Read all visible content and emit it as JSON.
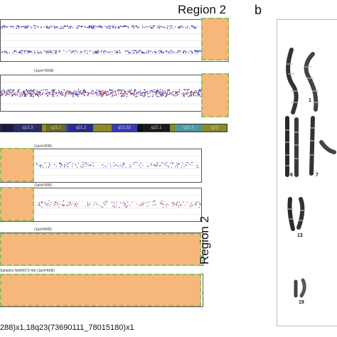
{
  "panel_a": {
    "region_label_top": "Region 2",
    "region_label_side": "Region 2",
    "panels": [
      {
        "label": ""
      },
      {
        "label": "(1pxl=76KB)"
      },
      {
        "label": "(1pxl=2KB)"
      },
      {
        "label": "(1pxl=2KB)"
      },
      {
        "label": "(1pxl=6KB)"
      },
      {
        "label": "Samples NA00073 4(t) (1pxl=6KB)"
      }
    ],
    "ideogram_bands": [
      "q12.3",
      "q21.1",
      "q21.2",
      "q21.32",
      "q22.1",
      "q22.3",
      "q23"
    ],
    "caption": "288)x1,18q23(73690111_78015180)x1",
    "colors": {
      "highlight": "#f7b77b",
      "dash": "#8cc063",
      "dots_blue": "#3a3ab0",
      "dots_red": "#b03040"
    }
  },
  "panel_b": {
    "letter": "b",
    "chromosome_labels": [
      "1",
      "6",
      "7",
      "13",
      "19"
    ]
  }
}
